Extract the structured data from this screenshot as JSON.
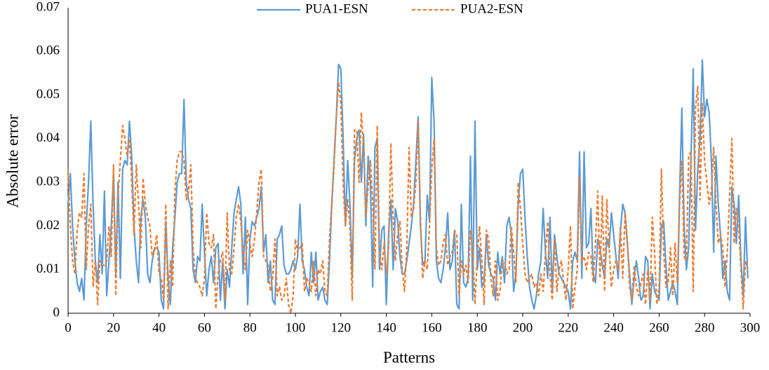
{
  "chart_data": {
    "type": "line",
    "x_label": "Patterns",
    "y_label": "Absolute error",
    "x": [
      0,
      1,
      2,
      3,
      4,
      5,
      6,
      7,
      8,
      9,
      10,
      11,
      12,
      13,
      14,
      15,
      16,
      17,
      18,
      19,
      20,
      21,
      22,
      23,
      24,
      25,
      26,
      27,
      28,
      29,
      30,
      31,
      32,
      33,
      34,
      35,
      36,
      37,
      38,
      39,
      40,
      41,
      42,
      43,
      44,
      45,
      46,
      47,
      48,
      49,
      50,
      51,
      52,
      53,
      54,
      55,
      56,
      57,
      58,
      59,
      60,
      61,
      62,
      63,
      64,
      65,
      66,
      67,
      68,
      69,
      70,
      71,
      72,
      73,
      74,
      75,
      76,
      77,
      78,
      79,
      80,
      81,
      82,
      83,
      84,
      85,
      86,
      87,
      88,
      89,
      90,
      91,
      92,
      93,
      94,
      95,
      96,
      97,
      98,
      99,
      100,
      101,
      102,
      103,
      104,
      105,
      106,
      107,
      108,
      109,
      110,
      111,
      112,
      113,
      114,
      115,
      116,
      117,
      118,
      119,
      120,
      121,
      122,
      123,
      124,
      125,
      126,
      127,
      128,
      129,
      130,
      131,
      132,
      133,
      134,
      135,
      136,
      137,
      138,
      139,
      140,
      141,
      142,
      143,
      144,
      145,
      146,
      147,
      148,
      149,
      150,
      151,
      152,
      153,
      154,
      155,
      156,
      157,
      158,
      159,
      160,
      161,
      162,
      163,
      164,
      165,
      166,
      167,
      168,
      169,
      170,
      171,
      172,
      173,
      174,
      175,
      176,
      177,
      178,
      179,
      180,
      181,
      182,
      183,
      184,
      185,
      186,
      187,
      188,
      189,
      190,
      191,
      192,
      193,
      194,
      195,
      196,
      197,
      198,
      199,
      200,
      201,
      202,
      203,
      204,
      205,
      206,
      207,
      208,
      209,
      210,
      211,
      212,
      213,
      214,
      215,
      216,
      217,
      218,
      219,
      220,
      221,
      222,
      223,
      224,
      225,
      226,
      227,
      228,
      229,
      230,
      231,
      232,
      233,
      234,
      235,
      236,
      237,
      238,
      239,
      240,
      241,
      242,
      243,
      244,
      245,
      246,
      247,
      248,
      249,
      250,
      251,
      252,
      253,
      254,
      255,
      256,
      257,
      258,
      259,
      260,
      261,
      262,
      263,
      264,
      265,
      266,
      267,
      268,
      269,
      270,
      271,
      272,
      273,
      274,
      275,
      276,
      277,
      278,
      279,
      280,
      281,
      282,
      283,
      284,
      285,
      286,
      287,
      288,
      289,
      290,
      291,
      292,
      293,
      294,
      295,
      296,
      297,
      298,
      299
    ],
    "series": [
      {
        "name": "PUA1-ESN",
        "color": "#5b9bd5",
        "dash": "solid",
        "values": [
          0.025,
          0.032,
          0.02,
          0.012,
          0.007,
          0.005,
          0.008,
          0.003,
          0.02,
          0.03,
          0.044,
          0.025,
          0.012,
          0.007,
          0.018,
          0.009,
          0.028,
          0.004,
          0.012,
          0.02,
          0.032,
          0.009,
          0.03,
          0.008,
          0.033,
          0.035,
          0.034,
          0.044,
          0.036,
          0.02,
          0.012,
          0.007,
          0.022,
          0.026,
          0.022,
          0.009,
          0.007,
          0.012,
          0.015,
          0.015,
          0.014,
          0.003,
          0.001,
          0.021,
          0.008,
          0.002,
          0.015,
          0.022,
          0.03,
          0.032,
          0.032,
          0.049,
          0.03,
          0.026,
          0.024,
          0.01,
          0.007,
          0.013,
          0.012,
          0.025,
          0.014,
          0.004,
          0.01,
          0.013,
          0.007,
          0.015,
          0.016,
          0.003,
          0.012,
          0.001,
          0.01,
          0.006,
          0.015,
          0.023,
          0.026,
          0.029,
          0.025,
          0.009,
          0.022,
          0.002,
          0.017,
          0.021,
          0.02,
          0.022,
          0.024,
          0.029,
          0.014,
          0.018,
          0.007,
          0.012,
          0.003,
          0.002,
          0.017,
          0.018,
          0.02,
          0.011,
          0.009,
          0.009,
          0.01,
          0.012,
          0.01,
          0.013,
          0.025,
          0.012,
          0.01,
          0.006,
          0.004,
          0.014,
          0.007,
          0.014,
          0.003,
          0.005,
          0.006,
          0.003,
          0.002,
          0.012,
          0.025,
          0.035,
          0.045,
          0.057,
          0.056,
          0.04,
          0.02,
          0.035,
          0.025,
          0.008,
          0.035,
          0.04,
          0.042,
          0.03,
          0.041,
          0.02,
          0.036,
          0.03,
          0.006,
          0.038,
          0.04,
          0.01,
          0.019,
          0.02,
          0.002,
          0.018,
          0.026,
          0.01,
          0.024,
          0.021,
          0.013,
          0.009,
          0.009,
          0.012,
          0.016,
          0.02,
          0.025,
          0.035,
          0.045,
          0.02,
          0.011,
          0.012,
          0.027,
          0.021,
          0.054,
          0.044,
          0.012,
          0.008,
          0.007,
          0.01,
          0.015,
          0.023,
          0.01,
          0.012,
          0.019,
          0.002,
          0.001,
          0.025,
          0.007,
          0.006,
          0.008,
          0.036,
          0.003,
          0.044,
          0.01,
          0.015,
          0.006,
          0.007,
          0.018,
          0.011,
          0.009,
          0.008,
          0.003,
          0.014,
          0.009,
          0.013,
          0.007,
          0.02,
          0.022,
          0.018,
          0.005,
          0.009,
          0.025,
          0.032,
          0.033,
          0.022,
          0.013,
          0.006,
          0.003,
          0.001,
          0.004,
          0.009,
          0.012,
          0.024,
          0.014,
          0.008,
          0.022,
          0.005,
          0.018,
          0.013,
          0.009,
          0.008,
          0.007,
          0.006,
          0.005,
          0.001,
          0.012,
          0.014,
          0.012,
          0.037,
          0.008,
          0.037,
          0.015,
          0.016,
          0.024,
          0.009,
          0.007,
          0.017,
          0.015,
          0.011,
          0.008,
          0.017,
          0.015,
          0.023,
          0.018,
          0.013,
          0.008,
          0.019,
          0.025,
          0.023,
          0.016,
          0.009,
          0.002,
          0.008,
          0.012,
          0.008,
          0.003,
          0.004,
          0.013,
          0.012,
          0.001,
          0.009,
          0.005,
          0.004,
          0.003,
          0.02,
          0.021,
          0.011,
          0.003,
          0.005,
          0.007,
          0.005,
          0.002,
          0.027,
          0.047,
          0.02,
          0.01,
          0.015,
          0.035,
          0.056,
          0.019,
          0.033,
          0.04,
          0.058,
          0.045,
          0.049,
          0.046,
          0.035,
          0.014,
          0.036,
          0.025,
          0.018,
          0.008,
          0.012,
          0.005,
          0.003,
          0.029,
          0.025,
          0.016,
          0.027,
          0.012,
          0.004,
          0.022,
          0.008
        ]
      },
      {
        "name": "PUA2-ESN",
        "color": "#ed7d31",
        "dash": "dashed",
        "values": [
          0.033,
          0.02,
          0.012,
          0.009,
          0.019,
          0.023,
          0.022,
          0.032,
          0.01,
          0.02,
          0.025,
          0.006,
          0.012,
          0.002,
          0.012,
          0.011,
          0.011,
          0.012,
          0.02,
          0.013,
          0.034,
          0.004,
          0.027,
          0.035,
          0.043,
          0.04,
          0.036,
          0.04,
          0.03,
          0.018,
          0.034,
          0.025,
          0.015,
          0.031,
          0.025,
          0.022,
          0.02,
          0.013,
          0.014,
          0.018,
          0.009,
          0.008,
          0.003,
          0.025,
          0.001,
          0.012,
          0.006,
          0.028,
          0.035,
          0.037,
          0.037,
          0.035,
          0.026,
          0.028,
          0.034,
          0.015,
          0.008,
          0.007,
          0.006,
          0.004,
          0.008,
          0.023,
          0.016,
          0.015,
          0.018,
          0.001,
          0.009,
          0.012,
          0.014,
          0.003,
          0.023,
          0.01,
          0.009,
          0.015,
          0.022,
          0.025,
          0.021,
          0.014,
          0.01,
          0.019,
          0.016,
          0.013,
          0.017,
          0.023,
          0.03,
          0.033,
          0.013,
          0.012,
          0.011,
          0.005,
          0.008,
          0.017,
          0.004,
          0.006,
          0.003,
          0.004,
          0.008,
          0.002,
          0.0,
          0.004,
          0.017,
          0.014,
          0.015,
          0.016,
          0.005,
          0.008,
          0.007,
          0.005,
          0.012,
          0.004,
          0.01,
          0.009,
          0.012,
          0.005,
          0.004,
          0.017,
          0.025,
          0.034,
          0.045,
          0.053,
          0.048,
          0.03,
          0.02,
          0.026,
          0.02,
          0.003,
          0.042,
          0.042,
          0.03,
          0.046,
          0.038,
          0.022,
          0.029,
          0.035,
          0.025,
          0.01,
          0.043,
          0.014,
          0.01,
          0.016,
          0.009,
          0.015,
          0.039,
          0.022,
          0.012,
          0.018,
          0.021,
          0.01,
          0.005,
          0.015,
          0.038,
          0.022,
          0.024,
          0.03,
          0.044,
          0.022,
          0.008,
          0.012,
          0.01,
          0.02,
          0.033,
          0.04,
          0.015,
          0.011,
          0.012,
          0.016,
          0.018,
          0.011,
          0.013,
          0.014,
          0.019,
          0.018,
          0.004,
          0.012,
          0.009,
          0.011,
          0.007,
          0.019,
          0.014,
          0.002,
          0.013,
          0.02,
          0.012,
          0.002,
          0.019,
          0.017,
          0.008,
          0.004,
          0.012,
          0.003,
          0.005,
          0.012,
          0.012,
          0.009,
          0.01,
          0.02,
          0.014,
          0.007,
          0.03,
          0.024,
          0.016,
          0.009,
          0.007,
          0.008,
          0.009,
          0.006,
          0.007,
          0.004,
          0.009,
          0.005,
          0.014,
          0.021,
          0.009,
          0.003,
          0.017,
          0.005,
          0.01,
          0.012,
          0.007,
          0.003,
          0.01,
          0.02,
          0.001,
          0.006,
          0.01,
          0.031,
          0.012,
          0.013,
          0.01,
          0.014,
          0.013,
          0.007,
          0.016,
          0.028,
          0.008,
          0.027,
          0.005,
          0.026,
          0.015,
          0.006,
          0.01,
          0.012,
          0.01,
          0.02,
          0.008,
          0.023,
          0.017,
          0.006,
          0.003,
          0.011,
          0.006,
          0.004,
          0.007,
          0.009,
          0.002,
          0.01,
          0.003,
          0.022,
          0.014,
          0.002,
          0.006,
          0.033,
          0.014,
          0.006,
          0.007,
          0.015,
          0.004,
          0.016,
          0.007,
          0.025,
          0.035,
          0.013,
          0.012,
          0.036,
          0.037,
          0.005,
          0.047,
          0.052,
          0.026,
          0.048,
          0.035,
          0.03,
          0.025,
          0.028,
          0.038,
          0.025,
          0.016,
          0.018,
          0.015,
          0.006,
          0.014,
          0.027,
          0.04,
          0.016,
          0.024,
          0.02,
          0.01,
          0.001,
          0.012,
          0.01
        ]
      }
    ],
    "xlim": [
      0,
      300
    ],
    "xticks": [
      0,
      20,
      40,
      60,
      80,
      100,
      120,
      140,
      160,
      180,
      200,
      220,
      240,
      260,
      280,
      300
    ],
    "ylim": [
      0,
      0.07
    ],
    "yticks": [
      0,
      0.01,
      0.02,
      0.03,
      0.04,
      0.05,
      0.06,
      0.07
    ],
    "grid": false,
    "legend": "top"
  }
}
